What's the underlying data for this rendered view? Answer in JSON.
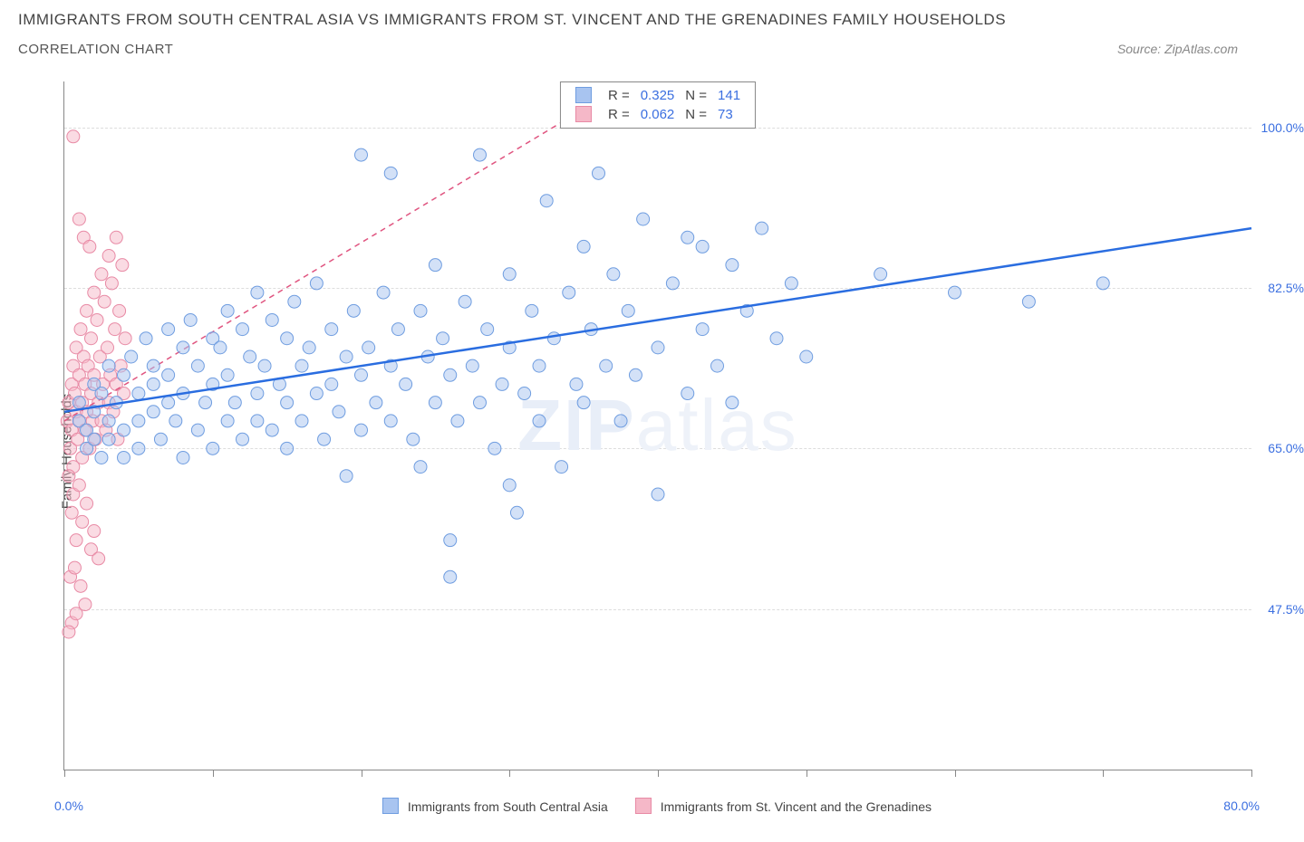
{
  "title": "IMMIGRANTS FROM SOUTH CENTRAL ASIA VS IMMIGRANTS FROM ST. VINCENT AND THE GRENADINES FAMILY HOUSEHOLDS",
  "subtitle": "CORRELATION CHART",
  "source": "Source: ZipAtlas.com",
  "watermark_main": "ZIP",
  "watermark_sub": "atlas",
  "y_label": "Family Households",
  "chart": {
    "type": "scatter",
    "xlim": [
      0,
      80
    ],
    "ylim": [
      30,
      105
    ],
    "x_min_label": "0.0%",
    "x_max_label": "80.0%",
    "x_ticks": [
      0,
      10,
      20,
      30,
      40,
      50,
      60,
      70,
      80
    ],
    "y_ticks": [
      47.5,
      65.0,
      82.5,
      100.0
    ],
    "y_tick_labels": [
      "47.5%",
      "65.0%",
      "82.5%",
      "100.0%"
    ],
    "grid_color": "#dddddd",
    "axis_color": "#888888",
    "background_color": "#ffffff",
    "marker_radius": 7,
    "marker_opacity": 0.5
  },
  "stats": {
    "label_R": "R =",
    "label_N": "N =",
    "series1": {
      "R": "0.325",
      "N": "141"
    },
    "series2": {
      "R": "0.062",
      "N": "73"
    }
  },
  "series": [
    {
      "name": "Immigrants from South Central Asia",
      "color_fill": "#a8c4f0",
      "color_stroke": "#6f9de0",
      "line_color": "#2a6de0",
      "line_width": 2.5,
      "line_dash": "none",
      "reg_line": {
        "x1": 0,
        "y1": 69,
        "x2": 80,
        "y2": 89
      },
      "points": [
        [
          1,
          68
        ],
        [
          1,
          70
        ],
        [
          1.5,
          67
        ],
        [
          1.5,
          65
        ],
        [
          2,
          72
        ],
        [
          2,
          66
        ],
        [
          2,
          69
        ],
        [
          2.5,
          71
        ],
        [
          2.5,
          64
        ],
        [
          3,
          74
        ],
        [
          3,
          68
        ],
        [
          3,
          66
        ],
        [
          3.5,
          70
        ],
        [
          4,
          73
        ],
        [
          4,
          67
        ],
        [
          4,
          64
        ],
        [
          4.5,
          75
        ],
        [
          5,
          71
        ],
        [
          5,
          68
        ],
        [
          5,
          65
        ],
        [
          5.5,
          77
        ],
        [
          6,
          72
        ],
        [
          6,
          69
        ],
        [
          6,
          74
        ],
        [
          6.5,
          66
        ],
        [
          7,
          78
        ],
        [
          7,
          70
        ],
        [
          7,
          73
        ],
        [
          7.5,
          68
        ],
        [
          8,
          76
        ],
        [
          8,
          71
        ],
        [
          8,
          64
        ],
        [
          8.5,
          79
        ],
        [
          9,
          74
        ],
        [
          9,
          67
        ],
        [
          9.5,
          70
        ],
        [
          10,
          77
        ],
        [
          10,
          72
        ],
        [
          10,
          65
        ],
        [
          10.5,
          76
        ],
        [
          11,
          80
        ],
        [
          11,
          68
        ],
        [
          11,
          73
        ],
        [
          11.5,
          70
        ],
        [
          12,
          78
        ],
        [
          12,
          66
        ],
        [
          12.5,
          75
        ],
        [
          13,
          71
        ],
        [
          13,
          82
        ],
        [
          13,
          68
        ],
        [
          13.5,
          74
        ],
        [
          14,
          79
        ],
        [
          14,
          67
        ],
        [
          14.5,
          72
        ],
        [
          15,
          77
        ],
        [
          15,
          70
        ],
        [
          15,
          65
        ],
        [
          15.5,
          81
        ],
        [
          16,
          74
        ],
        [
          16,
          68
        ],
        [
          16.5,
          76
        ],
        [
          17,
          71
        ],
        [
          17,
          83
        ],
        [
          17.5,
          66
        ],
        [
          18,
          78
        ],
        [
          18,
          72
        ],
        [
          18.5,
          69
        ],
        [
          19,
          75
        ],
        [
          19,
          62
        ],
        [
          19.5,
          80
        ],
        [
          20,
          73
        ],
        [
          20,
          67
        ],
        [
          20,
          97
        ],
        [
          20.5,
          76
        ],
        [
          21,
          70
        ],
        [
          21.5,
          82
        ],
        [
          22,
          74
        ],
        [
          22,
          95
        ],
        [
          22,
          68
        ],
        [
          22.5,
          78
        ],
        [
          23,
          72
        ],
        [
          23.5,
          66
        ],
        [
          24,
          80
        ],
        [
          24,
          63
        ],
        [
          24.5,
          75
        ],
        [
          25,
          70
        ],
        [
          25,
          85
        ],
        [
          25.5,
          77
        ],
        [
          26,
          73
        ],
        [
          26,
          55
        ],
        [
          26,
          51
        ],
        [
          26.5,
          68
        ],
        [
          27,
          81
        ],
        [
          27.5,
          74
        ],
        [
          28,
          70
        ],
        [
          28,
          97
        ],
        [
          28.5,
          78
        ],
        [
          29,
          65
        ],
        [
          29.5,
          72
        ],
        [
          30,
          84
        ],
        [
          30,
          76
        ],
        [
          30,
          61
        ],
        [
          30.5,
          58
        ],
        [
          31,
          71
        ],
        [
          31.5,
          80
        ],
        [
          32,
          74
        ],
        [
          32,
          68
        ],
        [
          32.5,
          92
        ],
        [
          33,
          77
        ],
        [
          33.5,
          63
        ],
        [
          34,
          82
        ],
        [
          34.5,
          72
        ],
        [
          35,
          87
        ],
        [
          35,
          70
        ],
        [
          35.5,
          78
        ],
        [
          36,
          95
        ],
        [
          36.5,
          74
        ],
        [
          37,
          84
        ],
        [
          37.5,
          68
        ],
        [
          38,
          80
        ],
        [
          38.5,
          73
        ],
        [
          39,
          90
        ],
        [
          40,
          76
        ],
        [
          40,
          60
        ],
        [
          41,
          83
        ],
        [
          42,
          71
        ],
        [
          42,
          88
        ],
        [
          43,
          78
        ],
        [
          43,
          87
        ],
        [
          44,
          74
        ],
        [
          45,
          85
        ],
        [
          45,
          70
        ],
        [
          46,
          80
        ],
        [
          47,
          89
        ],
        [
          48,
          77
        ],
        [
          49,
          83
        ],
        [
          50,
          75
        ],
        [
          55,
          84
        ],
        [
          60,
          82
        ],
        [
          65,
          81
        ],
        [
          70,
          83
        ]
      ]
    },
    {
      "name": "Immigrants from St. Vincent and the Grenadines",
      "color_fill": "#f5b8c8",
      "color_stroke": "#e88aa5",
      "line_color": "#e05580",
      "line_width": 1.5,
      "line_dash": "6,5",
      "reg_line": {
        "x1": 0,
        "y1": 68,
        "x2": 35,
        "y2": 102
      },
      "points": [
        [
          0.2,
          68
        ],
        [
          0.3,
          70
        ],
        [
          0.4,
          65
        ],
        [
          0.5,
          72
        ],
        [
          0.5,
          67
        ],
        [
          0.6,
          74
        ],
        [
          0.6,
          63
        ],
        [
          0.7,
          71
        ],
        [
          0.8,
          69
        ],
        [
          0.8,
          76
        ],
        [
          0.9,
          66
        ],
        [
          1.0,
          73
        ],
        [
          1.0,
          68
        ],
        [
          1.1,
          78
        ],
        [
          1.2,
          64
        ],
        [
          1.2,
          70
        ],
        [
          1.3,
          75
        ],
        [
          1.4,
          67
        ],
        [
          1.4,
          72
        ],
        [
          1.5,
          80
        ],
        [
          1.5,
          69
        ],
        [
          1.6,
          74
        ],
        [
          1.7,
          65
        ],
        [
          1.8,
          77
        ],
        [
          1.8,
          71
        ],
        [
          1.9,
          68
        ],
        [
          2.0,
          82
        ],
        [
          2.0,
          73
        ],
        [
          2.1,
          66
        ],
        [
          2.2,
          79
        ],
        [
          2.3,
          70
        ],
        [
          2.4,
          75
        ],
        [
          2.5,
          84
        ],
        [
          2.5,
          68
        ],
        [
          2.6,
          72
        ],
        [
          2.7,
          81
        ],
        [
          2.8,
          67
        ],
        [
          2.9,
          76
        ],
        [
          3.0,
          86
        ],
        [
          3.0,
          70
        ],
        [
          3.1,
          73
        ],
        [
          3.2,
          83
        ],
        [
          3.3,
          69
        ],
        [
          3.4,
          78
        ],
        [
          3.5,
          88
        ],
        [
          3.5,
          72
        ],
        [
          3.6,
          66
        ],
        [
          3.7,
          80
        ],
        [
          3.8,
          74
        ],
        [
          3.9,
          85
        ],
        [
          4.0,
          71
        ],
        [
          4.1,
          77
        ],
        [
          0.3,
          62
        ],
        [
          0.5,
          58
        ],
        [
          0.6,
          60
        ],
        [
          0.8,
          55
        ],
        [
          1.0,
          61
        ],
        [
          1.2,
          57
        ],
        [
          1.5,
          59
        ],
        [
          1.8,
          54
        ],
        [
          2.0,
          56
        ],
        [
          2.3,
          53
        ],
        [
          0.4,
          51
        ],
        [
          0.7,
          52
        ],
        [
          1.1,
          50
        ],
        [
          0.5,
          46
        ],
        [
          0.8,
          47
        ],
        [
          0.3,
          45
        ],
        [
          1.4,
          48
        ],
        [
          0.6,
          99
        ],
        [
          1.0,
          90
        ],
        [
          1.3,
          88
        ],
        [
          1.7,
          87
        ]
      ]
    }
  ]
}
